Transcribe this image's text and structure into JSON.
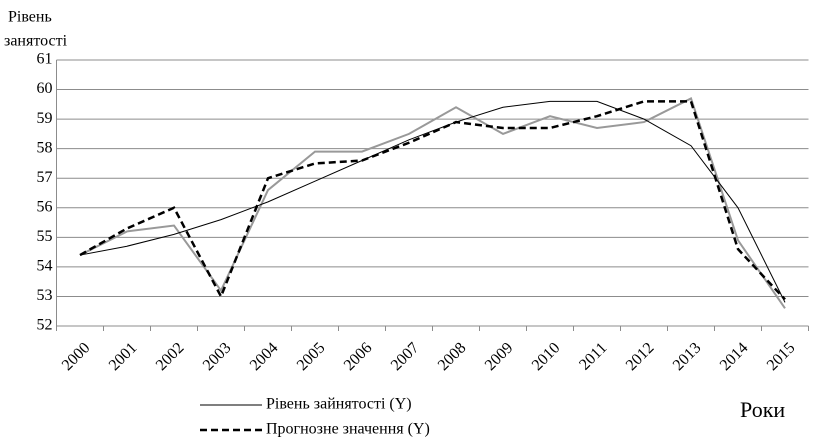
{
  "chart_data": {
    "type": "line",
    "ylabel_lines": [
      "Рівень",
      "занятості"
    ],
    "xlabel": "Роки",
    "categories": [
      "2000",
      "2001",
      "2002",
      "2003",
      "2004",
      "2005",
      "2006",
      "2007",
      "2008",
      "2009",
      "2010",
      "2011",
      "2012",
      "2013",
      "2014",
      "2015"
    ],
    "series": [
      {
        "name": "Рівень зайнятості (Y)",
        "color": "#999999",
        "dash": false,
        "width": 2,
        "values": [
          54.4,
          55.2,
          55.4,
          53.2,
          56.6,
          57.9,
          57.9,
          58.5,
          59.4,
          58.5,
          59.1,
          58.7,
          58.9,
          59.7,
          54.9,
          52.6
        ]
      },
      {
        "name": "Прогнозне значення (Y)",
        "color": "#000000",
        "dash": true,
        "width": 2.5,
        "values": [
          54.4,
          55.3,
          56.0,
          53.0,
          57.0,
          57.5,
          57.6,
          58.2,
          58.9,
          58.7,
          58.7,
          59.1,
          59.6,
          59.6,
          54.6,
          52.9
        ]
      },
      {
        "color": "#000000",
        "dash": false,
        "width": 1,
        "values": [
          54.4,
          54.7,
          55.1,
          55.6,
          56.2,
          56.9,
          57.6,
          58.3,
          58.9,
          59.4,
          59.6,
          59.6,
          59.0,
          58.1,
          56.0,
          52.8
        ]
      }
    ],
    "ylim": [
      52,
      61
    ],
    "yticks": [
      52,
      53,
      54,
      55,
      56,
      57,
      58,
      59,
      60,
      61
    ],
    "grid": true
  }
}
